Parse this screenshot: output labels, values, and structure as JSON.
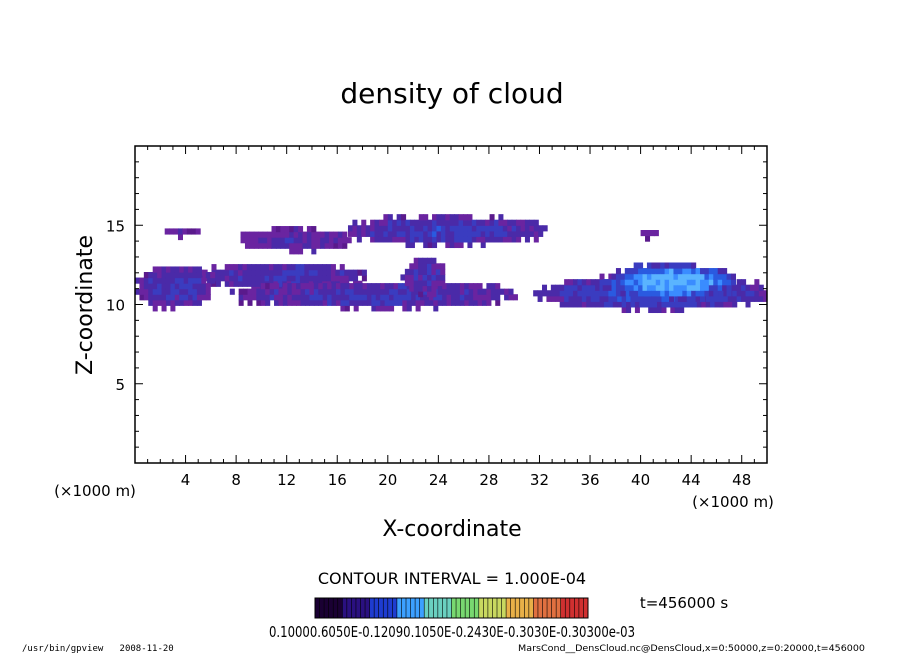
{
  "chart_data": {
    "type": "heatmap",
    "title": "density of cloud",
    "xlabel": "X-coordinate",
    "ylabel": "Z-coordinate",
    "x_unit": "(×1000 m)",
    "y_unit": "(×1000 m)",
    "xlim": [
      0,
      50
    ],
    "ylim": [
      0,
      20
    ],
    "x_ticks": [
      4,
      8,
      12,
      16,
      20,
      24,
      28,
      32,
      36,
      40,
      44,
      48
    ],
    "y_ticks": [
      5,
      10,
      15
    ],
    "grid": false,
    "contour_interval_text": "CONTOUR INTERVAL = 1.000E-04",
    "time_text": "t=456000 s",
    "colorbar_labels_text": "0.10000.6050E-0.12090.1050E-0.2430E-0.3030E-0.30300e-03",
    "colorbar_colors": [
      "#1a0033",
      "#2a1080",
      "#1e3cd0",
      "#3ca0ff",
      "#6ad0c0",
      "#78d870",
      "#c8d860",
      "#e8b048",
      "#e07040",
      "#d03030"
    ],
    "footer_left": "/usr/bin/gpview   2008-11-20",
    "footer_right": "MarsCond__DensCloud.nc@DensCloud,x=0:50000,z=0:20000,t=456000",
    "regions": [
      {
        "name": "upper-band",
        "x0": 16.5,
        "x1": 32.5,
        "z0": 13.6,
        "z1": 15.4,
        "intensity": 0.35
      },
      {
        "name": "upper-left-bits",
        "x0": 8.0,
        "x1": 17.0,
        "z0": 13.2,
        "z1": 14.6,
        "intensity": 0.2
      },
      {
        "name": "small-patch-a",
        "x0": 2.0,
        "x1": 5.2,
        "z0": 14.1,
        "z1": 14.6,
        "intensity": 0.1
      },
      {
        "name": "small-patch-b",
        "x0": 40.0,
        "x1": 41.2,
        "z0": 14.0,
        "z1": 14.6,
        "intensity": 0.1
      },
      {
        "name": "mid-left-band",
        "x0": 5.0,
        "x1": 18.0,
        "z0": 10.8,
        "z1": 12.5,
        "intensity": 0.3
      },
      {
        "name": "lower-left",
        "x0": 0.0,
        "x1": 6.0,
        "z0": 9.6,
        "z1": 12.3,
        "intensity": 0.3
      },
      {
        "name": "lower-center",
        "x0": 7.5,
        "x1": 30.0,
        "z0": 9.6,
        "z1": 11.3,
        "intensity": 0.3
      },
      {
        "name": "mid-center-bump",
        "x0": 21.0,
        "x1": 24.5,
        "z0": 10.5,
        "z1": 12.8,
        "intensity": 0.25
      },
      {
        "name": "right-band",
        "x0": 31.5,
        "x1": 50.0,
        "z0": 9.5,
        "z1": 11.6,
        "intensity": 0.45
      },
      {
        "name": "right-core",
        "x0": 37.0,
        "x1": 47.5,
        "z0": 10.2,
        "z1": 12.4,
        "intensity": 0.8
      }
    ]
  }
}
